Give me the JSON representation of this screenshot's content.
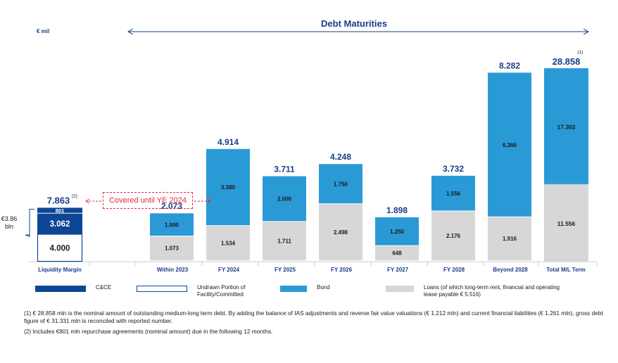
{
  "unit_label": "€ mil",
  "title": "Debt Maturities",
  "bracket_label": "€3.86 bln",
  "covered_label": "Covered until YE 2024",
  "colors": {
    "cce": "#0d4696",
    "undrawn_border": "#0d4696",
    "bond": "#2a9ad6",
    "loans": "#d7d7d7",
    "total_text": "#1a3c8c",
    "covered": "#e8283c"
  },
  "legend": [
    {
      "key": "cce",
      "label": "C&CE"
    },
    {
      "key": "undrawn",
      "label": "Undrawn Portion of Facility/Committed"
    },
    {
      "key": "bond",
      "label": "Bond"
    },
    {
      "key": "loans",
      "label": "Loans (of which long-term rent, financial and operating lease payable € 5.516)"
    }
  ],
  "chart_data": {
    "type": "bar",
    "title": "Debt Maturities",
    "ylabel": "€ mil",
    "categories": [
      "Liquidity Margin",
      "Within 2023",
      "FY 2024",
      "FY 2025",
      "FY 2026",
      "FY 2027",
      "FY 2028",
      "Beyond 2028",
      "Total M/L Term"
    ],
    "liquidity_margin": {
      "total": "7.863",
      "total_note": "(2)",
      "undrawn": 4000,
      "cce": 3062,
      "repo": 801,
      "labels": {
        "undrawn": "4.000",
        "cce": "3.062",
        "repo": "801"
      }
    },
    "maturities": [
      {
        "category": "Within 2023",
        "total": "2.073",
        "loans": 1073,
        "bond": 1000,
        "loans_label": "1.073",
        "bond_label": "1.000"
      },
      {
        "category": "FY 2024",
        "total": "4.914",
        "loans": 1534,
        "bond": 3380,
        "loans_label": "1.534",
        "bond_label": "3.380"
      },
      {
        "category": "FY 2025",
        "total": "3.711",
        "loans": 1711,
        "bond": 2000,
        "loans_label": "1.711",
        "bond_label": "2.000"
      },
      {
        "category": "FY 2026",
        "total": "4.248",
        "loans": 2498,
        "bond": 1750,
        "loans_label": "2.498",
        "bond_label": "1.750"
      },
      {
        "category": "FY 2027",
        "total": "1.898",
        "loans": 648,
        "bond": 1250,
        "loans_label": "648",
        "bond_label": "1.250"
      },
      {
        "category": "FY 2028",
        "total": "3.732",
        "loans": 2176,
        "bond": 1556,
        "loans_label": "2.176",
        "bond_label": "1.556"
      },
      {
        "category": "Beyond 2028",
        "total": "8.282",
        "loans": 1916,
        "bond": 6366,
        "loans_label": "1.916",
        "bond_label": "6.366"
      }
    ],
    "total_ml": {
      "category": "Total M/L Term",
      "total": "28.858",
      "total_note": "(1)",
      "loans": 11556,
      "bond": 17302,
      "loans_label": "11.556",
      "bond_label": "17.302"
    }
  },
  "notes": [
    "(1) € 28.858 mln is the nominal amount of outstanding medium-long term debt. By adding the balance of IAS adjustments and reverse fair value valuations (€ 1.212 mln) and current financial liabilities (€ 1.261 mln), gross debt figure of € 31.331 mln is reconciled with reported number.",
    "(2) Includes €801 mln repurchase agreements (nominal amount) due in the following 12 months."
  ]
}
